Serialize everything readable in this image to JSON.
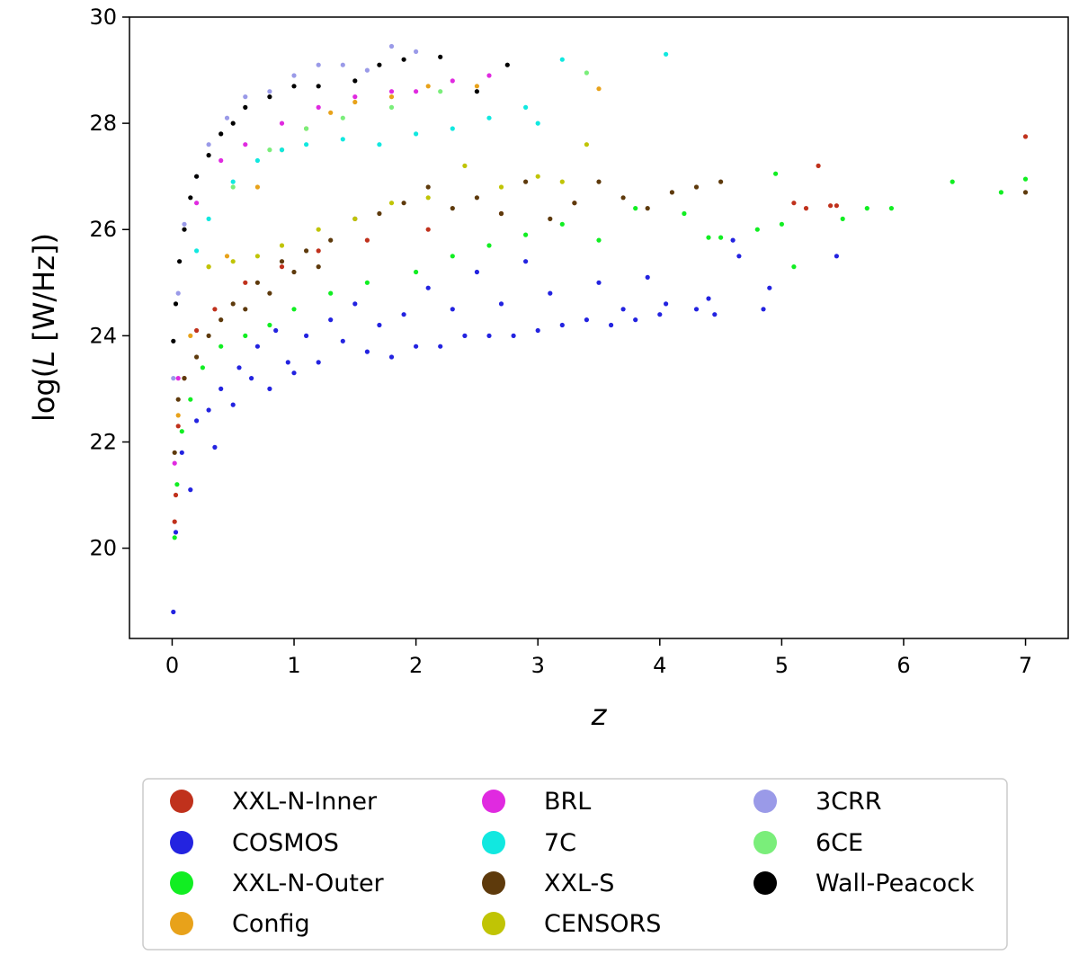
{
  "chart_data": {
    "type": "scatter",
    "xlabel": "z",
    "ylabel_prefix": "log(",
    "ylabel_var": "L",
    "ylabel_suffix": " [W/Hz])",
    "xlim": [
      -0.35,
      7.35
    ],
    "ylim": [
      18.3,
      30
    ],
    "xticks": [
      0,
      1,
      2,
      3,
      4,
      5,
      6,
      7
    ],
    "yticks": [
      20,
      22,
      24,
      26,
      28,
      30
    ],
    "grid": false,
    "legend_position": "below the plot, 3 columns",
    "series": [
      {
        "name": "XXL-N-Inner",
        "color": "#c0311c",
        "points": [
          [
            0.02,
            20.5
          ],
          [
            0.03,
            21.0
          ],
          [
            0.05,
            22.3
          ],
          [
            0.1,
            23.2
          ],
          [
            0.2,
            24.1
          ],
          [
            0.35,
            24.5
          ],
          [
            0.6,
            25.0
          ],
          [
            0.9,
            25.3
          ],
          [
            1.2,
            25.6
          ],
          [
            1.6,
            25.8
          ],
          [
            2.1,
            26.0
          ],
          [
            2.7,
            26.3
          ],
          [
            3.3,
            26.5
          ],
          [
            5.1,
            26.5
          ],
          [
            5.2,
            26.4
          ],
          [
            5.3,
            27.2
          ],
          [
            5.4,
            26.45
          ],
          [
            5.45,
            26.45
          ],
          [
            7.0,
            27.75
          ]
        ]
      },
      {
        "name": "COSMOS",
        "color": "#2323e0",
        "points": [
          [
            0.01,
            18.8
          ],
          [
            0.03,
            20.3
          ],
          [
            0.08,
            21.8
          ],
          [
            0.15,
            21.1
          ],
          [
            0.2,
            22.4
          ],
          [
            0.3,
            22.6
          ],
          [
            0.35,
            21.9
          ],
          [
            0.4,
            23.0
          ],
          [
            0.5,
            22.7
          ],
          [
            0.55,
            23.4
          ],
          [
            0.65,
            23.2
          ],
          [
            0.7,
            23.8
          ],
          [
            0.8,
            23.0
          ],
          [
            0.85,
            24.1
          ],
          [
            0.95,
            23.5
          ],
          [
            1.0,
            23.3
          ],
          [
            1.1,
            24.0
          ],
          [
            1.2,
            23.5
          ],
          [
            1.3,
            24.3
          ],
          [
            1.4,
            23.9
          ],
          [
            1.5,
            24.6
          ],
          [
            1.6,
            23.7
          ],
          [
            1.7,
            24.2
          ],
          [
            1.8,
            23.6
          ],
          [
            1.9,
            24.4
          ],
          [
            2.0,
            23.8
          ],
          [
            2.1,
            24.9
          ],
          [
            2.2,
            23.8
          ],
          [
            2.3,
            24.5
          ],
          [
            2.4,
            24.0
          ],
          [
            2.5,
            25.2
          ],
          [
            2.6,
            24.0
          ],
          [
            2.7,
            24.6
          ],
          [
            2.8,
            24.0
          ],
          [
            2.9,
            25.4
          ],
          [
            3.0,
            24.1
          ],
          [
            3.1,
            24.8
          ],
          [
            3.2,
            24.2
          ],
          [
            3.4,
            24.3
          ],
          [
            3.5,
            25.0
          ],
          [
            3.6,
            24.2
          ],
          [
            3.7,
            24.5
          ],
          [
            3.8,
            24.3
          ],
          [
            3.9,
            25.1
          ],
          [
            4.0,
            24.4
          ],
          [
            4.05,
            24.6
          ],
          [
            4.3,
            24.5
          ],
          [
            4.4,
            24.7
          ],
          [
            4.45,
            24.4
          ],
          [
            4.6,
            25.8
          ],
          [
            4.65,
            25.5
          ],
          [
            4.85,
            24.5
          ],
          [
            4.9,
            24.9
          ],
          [
            5.45,
            25.5
          ]
        ]
      },
      {
        "name": "XXL-N-Outer",
        "color": "#11ee22",
        "points": [
          [
            0.02,
            20.2
          ],
          [
            0.04,
            21.2
          ],
          [
            0.08,
            22.2
          ],
          [
            0.15,
            22.8
          ],
          [
            0.25,
            23.4
          ],
          [
            0.4,
            23.8
          ],
          [
            0.6,
            24.0
          ],
          [
            0.8,
            24.2
          ],
          [
            1.0,
            24.5
          ],
          [
            1.3,
            24.8
          ],
          [
            1.6,
            25.0
          ],
          [
            2.0,
            25.2
          ],
          [
            2.3,
            25.5
          ],
          [
            2.6,
            25.7
          ],
          [
            2.9,
            25.9
          ],
          [
            3.2,
            26.1
          ],
          [
            3.5,
            25.8
          ],
          [
            3.8,
            26.4
          ],
          [
            4.2,
            26.3
          ],
          [
            4.4,
            25.85
          ],
          [
            4.5,
            25.85
          ],
          [
            4.8,
            26.0
          ],
          [
            4.95,
            27.05
          ],
          [
            5.0,
            26.1
          ],
          [
            5.1,
            25.3
          ],
          [
            5.5,
            26.2
          ],
          [
            5.7,
            26.4
          ],
          [
            5.9,
            26.4
          ],
          [
            6.4,
            26.9
          ],
          [
            6.8,
            26.7
          ],
          [
            7.0,
            26.95
          ]
        ]
      },
      {
        "name": "Config",
        "color": "#e8a21a",
        "points": [
          [
            0.05,
            22.5
          ],
          [
            0.15,
            24.0
          ],
          [
            0.3,
            25.3
          ],
          [
            0.45,
            25.5
          ],
          [
            0.7,
            26.8
          ],
          [
            0.9,
            27.5
          ],
          [
            1.1,
            27.9
          ],
          [
            1.3,
            28.2
          ],
          [
            1.5,
            28.4
          ],
          [
            1.8,
            28.5
          ],
          [
            2.1,
            28.7
          ],
          [
            2.5,
            28.7
          ],
          [
            3.5,
            28.65
          ]
        ]
      },
      {
        "name": "BRL",
        "color": "#e02ae0",
        "points": [
          [
            0.02,
            21.6
          ],
          [
            0.05,
            23.2
          ],
          [
            0.2,
            26.5
          ],
          [
            0.4,
            27.3
          ],
          [
            0.6,
            27.6
          ],
          [
            0.9,
            28.0
          ],
          [
            1.2,
            28.3
          ],
          [
            1.5,
            28.5
          ],
          [
            1.8,
            28.6
          ],
          [
            2.0,
            28.6
          ],
          [
            2.3,
            28.8
          ],
          [
            2.6,
            28.9
          ]
        ]
      },
      {
        "name": "7C",
        "color": "#11e8e0",
        "points": [
          [
            0.2,
            25.6
          ],
          [
            0.3,
            26.2
          ],
          [
            0.5,
            26.9
          ],
          [
            0.7,
            27.3
          ],
          [
            0.9,
            27.5
          ],
          [
            1.1,
            27.6
          ],
          [
            1.4,
            27.7
          ],
          [
            1.7,
            27.6
          ],
          [
            2.0,
            27.8
          ],
          [
            2.3,
            27.9
          ],
          [
            2.6,
            28.1
          ],
          [
            2.9,
            28.3
          ],
          [
            3.0,
            28.0
          ],
          [
            3.2,
            29.2
          ],
          [
            4.05,
            29.3
          ]
        ]
      },
      {
        "name": "XXL-S",
        "color": "#5e3a0c",
        "points": [
          [
            0.02,
            21.8
          ],
          [
            0.05,
            22.8
          ],
          [
            0.1,
            23.2
          ],
          [
            0.2,
            23.6
          ],
          [
            0.3,
            24.0
          ],
          [
            0.4,
            24.3
          ],
          [
            0.5,
            24.6
          ],
          [
            0.6,
            24.5
          ],
          [
            0.7,
            25.0
          ],
          [
            0.8,
            24.8
          ],
          [
            0.9,
            25.4
          ],
          [
            1.0,
            25.2
          ],
          [
            1.1,
            25.6
          ],
          [
            1.2,
            25.3
          ],
          [
            1.3,
            25.8
          ],
          [
            1.5,
            26.2
          ],
          [
            1.7,
            26.3
          ],
          [
            1.9,
            26.5
          ],
          [
            2.1,
            26.8
          ],
          [
            2.3,
            26.4
          ],
          [
            2.5,
            26.6
          ],
          [
            2.7,
            26.3
          ],
          [
            2.9,
            26.9
          ],
          [
            3.1,
            26.2
          ],
          [
            3.3,
            26.5
          ],
          [
            3.5,
            26.9
          ],
          [
            3.7,
            26.6
          ],
          [
            3.9,
            26.4
          ],
          [
            4.1,
            26.7
          ],
          [
            4.3,
            26.8
          ],
          [
            4.5,
            26.9
          ],
          [
            7.0,
            26.7
          ]
        ]
      },
      {
        "name": "CENSORS",
        "color": "#c0c405",
        "points": [
          [
            0.3,
            25.3
          ],
          [
            0.5,
            25.4
          ],
          [
            0.7,
            25.5
          ],
          [
            0.9,
            25.7
          ],
          [
            1.2,
            26.0
          ],
          [
            1.5,
            26.2
          ],
          [
            1.8,
            26.5
          ],
          [
            2.1,
            26.6
          ],
          [
            2.4,
            27.2
          ],
          [
            2.7,
            26.8
          ],
          [
            3.0,
            27.0
          ],
          [
            3.2,
            26.9
          ],
          [
            3.4,
            27.6
          ]
        ]
      },
      {
        "name": "3CRR",
        "color": "#9a9ae8",
        "points": [
          [
            0.01,
            23.2
          ],
          [
            0.05,
            24.8
          ],
          [
            0.1,
            26.1
          ],
          [
            0.2,
            27.0
          ],
          [
            0.3,
            27.6
          ],
          [
            0.45,
            28.1
          ],
          [
            0.6,
            28.5
          ],
          [
            0.8,
            28.6
          ],
          [
            1.0,
            28.9
          ],
          [
            1.2,
            29.1
          ],
          [
            1.4,
            29.1
          ],
          [
            1.6,
            29.0
          ],
          [
            1.8,
            29.45
          ],
          [
            2.0,
            29.35
          ]
        ]
      },
      {
        "name": "6CE",
        "color": "#7aee7a",
        "points": [
          [
            0.5,
            26.8
          ],
          [
            0.8,
            27.5
          ],
          [
            1.1,
            27.9
          ],
          [
            1.4,
            28.1
          ],
          [
            1.8,
            28.3
          ],
          [
            2.2,
            28.6
          ],
          [
            3.4,
            28.95
          ]
        ]
      },
      {
        "name": "Wall-Peacock",
        "color": "#000000",
        "points": [
          [
            0.01,
            23.9
          ],
          [
            0.03,
            24.6
          ],
          [
            0.06,
            25.4
          ],
          [
            0.1,
            26.0
          ],
          [
            0.15,
            26.6
          ],
          [
            0.2,
            27.0
          ],
          [
            0.3,
            27.4
          ],
          [
            0.4,
            27.8
          ],
          [
            0.5,
            28.0
          ],
          [
            0.6,
            28.3
          ],
          [
            0.8,
            28.5
          ],
          [
            1.0,
            28.7
          ],
          [
            1.2,
            28.7
          ],
          [
            1.5,
            28.8
          ],
          [
            1.7,
            29.1
          ],
          [
            1.9,
            29.2
          ],
          [
            2.2,
            29.25
          ],
          [
            2.5,
            28.6
          ],
          [
            2.75,
            29.1
          ]
        ]
      }
    ]
  }
}
